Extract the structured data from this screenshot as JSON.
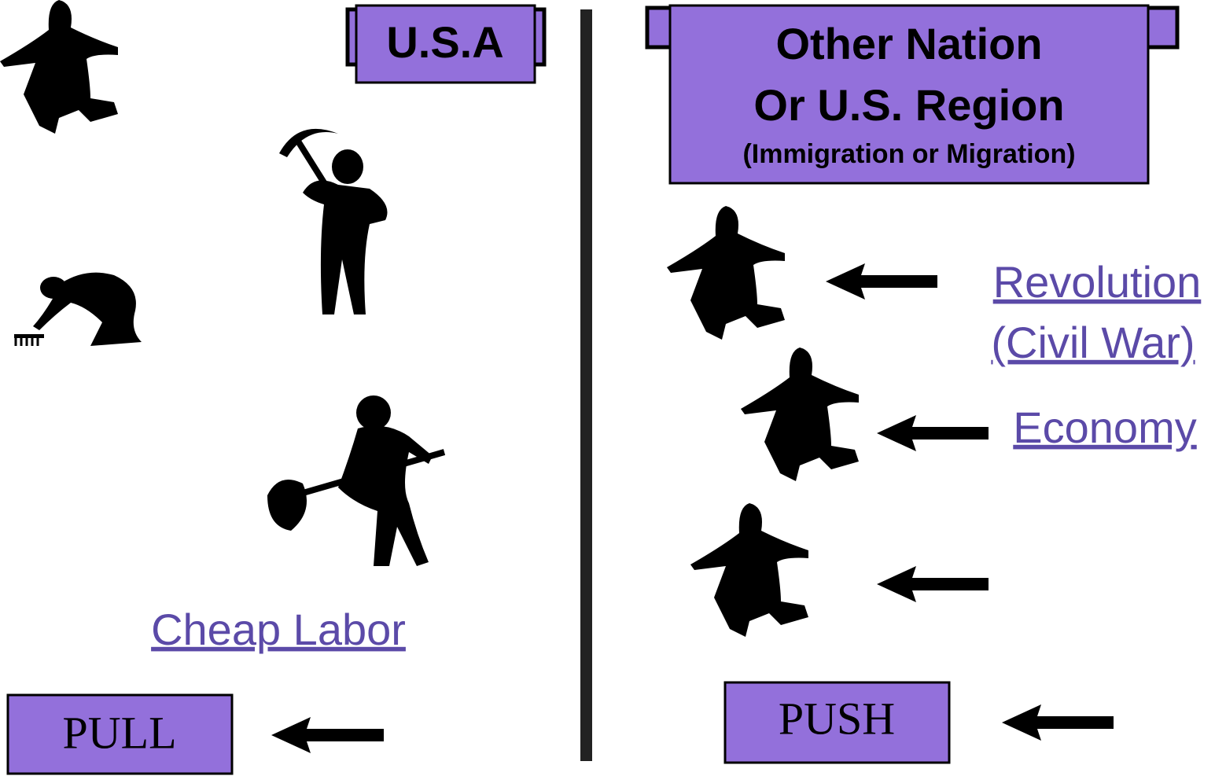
{
  "left": {
    "title": "U.S.A",
    "link": "Cheap Labor",
    "label": "PULL"
  },
  "right": {
    "title": [
      "Other Nation",
      "Or U.S. Region"
    ],
    "subtitle": "(Immigration or Migration)",
    "reasons": [
      [
        "Revolution",
        "(Civil War)"
      ],
      [
        "Economy"
      ]
    ],
    "label": "PUSH"
  }
}
